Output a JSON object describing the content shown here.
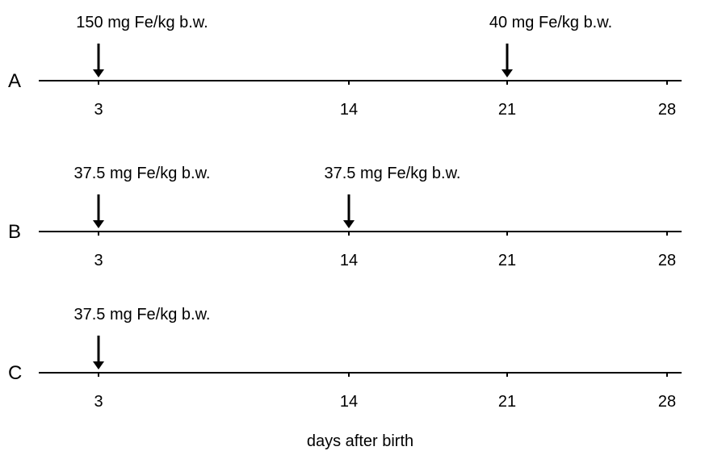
{
  "diagram": {
    "x_axis_label": "days after birth",
    "tick_days": [
      "3",
      "14",
      "21",
      "28"
    ],
    "rows": [
      {
        "label": "A",
        "doses": [
          {
            "day": 3,
            "text": "150 mg Fe/kg b.w."
          },
          {
            "day": 21,
            "text": "40 mg Fe/kg b.w."
          }
        ]
      },
      {
        "label": "B",
        "doses": [
          {
            "day": 3,
            "text": "37.5 mg Fe/kg b.w."
          },
          {
            "day": 14,
            "text": "37.5 mg Fe/kg b.w."
          }
        ]
      },
      {
        "label": "C",
        "doses": [
          {
            "day": 3,
            "text": "37.5 mg Fe/kg b.w."
          }
        ]
      }
    ]
  }
}
